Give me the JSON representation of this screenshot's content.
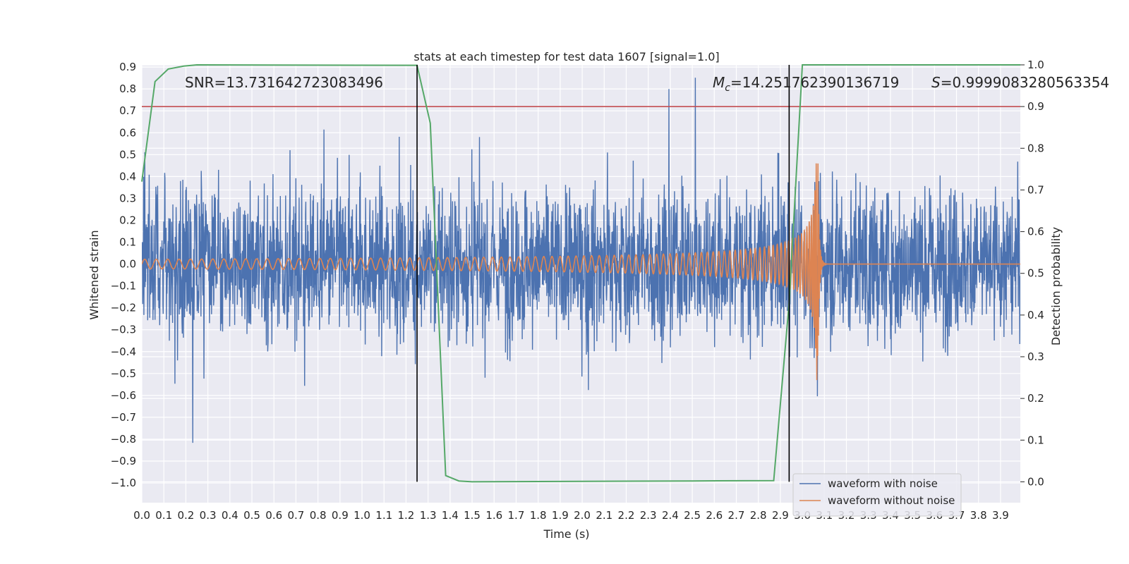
{
  "chart_data": {
    "type": "line",
    "title": "stats at each timestep for test data 1607 [signal=1.0]",
    "xlabel": "Time (s)",
    "ylabel": "Whitened strain",
    "y2label": "Detection probability",
    "xlim": [
      0.0,
      3.99
    ],
    "ylim": [
      -1.09,
      0.91
    ],
    "y2lim": [
      -0.05,
      1.0
    ],
    "x_ticks": [
      "0.0",
      "0.1",
      "0.2",
      "0.3",
      "0.4",
      "0.5",
      "0.6",
      "0.7",
      "0.8",
      "0.9",
      "1.0",
      "1.1",
      "1.2",
      "1.3",
      "1.4",
      "1.5",
      "1.6",
      "1.7",
      "1.8",
      "1.9",
      "2.0",
      "2.1",
      "2.2",
      "2.3",
      "2.4",
      "2.5",
      "2.6",
      "2.7",
      "2.8",
      "2.9",
      "3.0",
      "3.1",
      "3.2",
      "3.3",
      "3.4",
      "3.5",
      "3.6",
      "3.7",
      "3.8",
      "3.9"
    ],
    "y_ticks": [
      "0.9",
      "0.8",
      "0.7",
      "0.6",
      "0.5",
      "0.4",
      "0.3",
      "0.2",
      "0.1",
      "0.0",
      "−0.1",
      "−0.2",
      "−0.3",
      "−0.4",
      "−0.5",
      "−0.6",
      "−0.7",
      "−0.8",
      "−0.9",
      "−1.0"
    ],
    "y2_ticks": [
      "1.0",
      "0.9",
      "0.8",
      "0.7",
      "0.6",
      "0.5",
      "0.4",
      "0.3",
      "0.2",
      "0.1",
      "0.0"
    ],
    "grid": true,
    "annotations": {
      "snr": "SNR=13.731642723083496",
      "mc_symbol": "M",
      "mc_sub": "c",
      "mc_value": "=14.251762390136719",
      "s_symbol": "S",
      "s_value": "=0.9999083280563354"
    },
    "vlines": [
      1.25,
      2.94
    ],
    "threshold": {
      "axis": "y2",
      "value": 0.9,
      "color": "#c44e52"
    },
    "detection_probability": {
      "name": "detection probability",
      "color": "#55a868",
      "t": [
        0.0,
        0.06,
        0.12,
        0.19,
        0.25,
        1.25,
        1.31,
        1.38,
        1.44,
        1.5,
        2.5,
        2.87,
        2.94,
        3.0,
        3.99
      ],
      "p": [
        0.72,
        0.96,
        0.99,
        0.997,
        1.0,
        0.999,
        0.86,
        0.015,
        0.002,
        0.0,
        0.002,
        0.003,
        0.43,
        1.0,
        1.0
      ]
    },
    "series": [
      {
        "name": "waveform with noise",
        "color": "#4c72b0",
        "noise_std": 0.17,
        "clip": [
          -0.82,
          0.82
        ]
      },
      {
        "name": "waveform without noise",
        "color": "#dd8452",
        "merger_time": 3.07,
        "freq_start": 19,
        "amp_start": 0.022,
        "amp_peak": 0.54
      }
    ],
    "legend": {
      "placement": "lower-right",
      "entries": [
        "waveform with noise",
        "waveform without noise"
      ]
    }
  }
}
